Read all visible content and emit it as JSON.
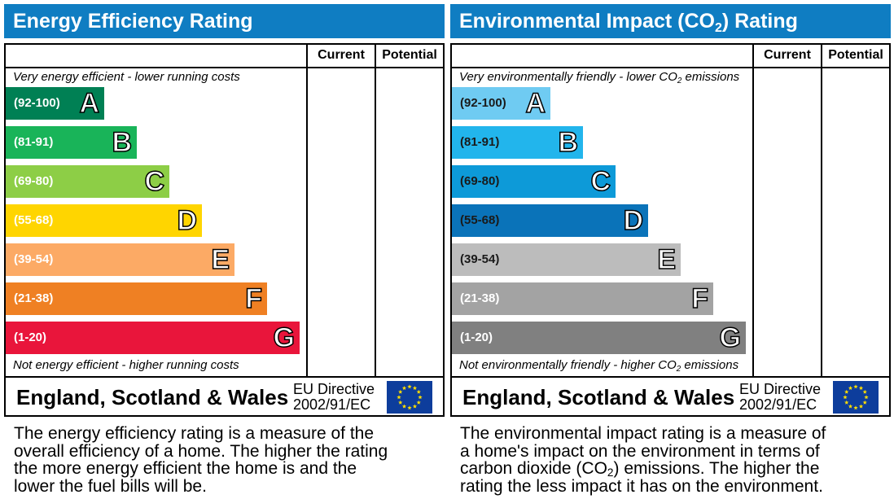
{
  "panels": [
    {
      "title": [
        "Energy Efficiency Rating"
      ],
      "columns": [
        "Current",
        "Potential"
      ],
      "top_note": [
        "Very energy efficient - lower running costs"
      ],
      "bottom_note": [
        "Not energy efficient - higher running costs"
      ],
      "bands": [
        {
          "range": "(92-100)",
          "letter": "A",
          "color": "#008054",
          "text_color": "#ffffff"
        },
        {
          "range": "(81-91)",
          "letter": "B",
          "color": "#19b459",
          "text_color": "#ffffff"
        },
        {
          "range": "(69-80)",
          "letter": "C",
          "color": "#8dce46",
          "text_color": "#ffffff"
        },
        {
          "range": "(55-68)",
          "letter": "D",
          "color": "#ffd500",
          "text_color": "#ffffff"
        },
        {
          "range": "(39-54)",
          "letter": "E",
          "color": "#fcaa65",
          "text_color": "#ffffff"
        },
        {
          "range": "(21-38)",
          "letter": "F",
          "color": "#ef8023",
          "text_color": "#ffffff"
        },
        {
          "range": "(1-20)",
          "letter": "G",
          "color": "#e9153b",
          "text_color": "#ffffff"
        }
      ],
      "region": "England, Scotland & Wales",
      "directive": [
        "EU Directive",
        "2002/91/EC"
      ],
      "description": [
        [
          "The energy efficiency rating is a measure of the"
        ],
        [
          "overall efficiency of a home. The higher the rating"
        ],
        [
          "the more energy efficient the home is and the"
        ],
        [
          "lower the fuel bills will be."
        ]
      ]
    },
    {
      "title": [
        "Environmental Impact (CO",
        "2",
        ") Rating"
      ],
      "columns": [
        "Current",
        "Potential"
      ],
      "top_note": [
        "Very environmentally friendly - lower CO",
        "2",
        " emissions"
      ],
      "bottom_note": [
        "Not environmentally friendly - higher CO",
        "2",
        " emissions"
      ],
      "bands": [
        {
          "range": "(92-100)",
          "letter": "A",
          "color": "#6fcbf2",
          "text_color": "#1a1a1a"
        },
        {
          "range": "(81-91)",
          "letter": "B",
          "color": "#22b5ec",
          "text_color": "#1a1a1a"
        },
        {
          "range": "(69-80)",
          "letter": "C",
          "color": "#0d9ad8",
          "text_color": "#1a1a1a"
        },
        {
          "range": "(55-68)",
          "letter": "D",
          "color": "#0a73b9",
          "text_color": "#1a1a1a"
        },
        {
          "range": "(39-54)",
          "letter": "E",
          "color": "#bcbcbc",
          "text_color": "#1a1a1a"
        },
        {
          "range": "(21-38)",
          "letter": "F",
          "color": "#a3a3a3",
          "text_color": "#ffffff"
        },
        {
          "range": "(1-20)",
          "letter": "G",
          "color": "#808080",
          "text_color": "#ffffff"
        }
      ],
      "region": "England, Scotland & Wales",
      "directive": [
        "EU Directive",
        "2002/91/EC"
      ],
      "description": [
        [
          "The environmental impact rating is a measure of"
        ],
        [
          "a home's impact on the environment in terms of"
        ],
        [
          "carbon dioxide (CO",
          "2",
          ") emissions. The higher the"
        ],
        [
          "rating the less impact it has on the environment."
        ]
      ]
    }
  ]
}
